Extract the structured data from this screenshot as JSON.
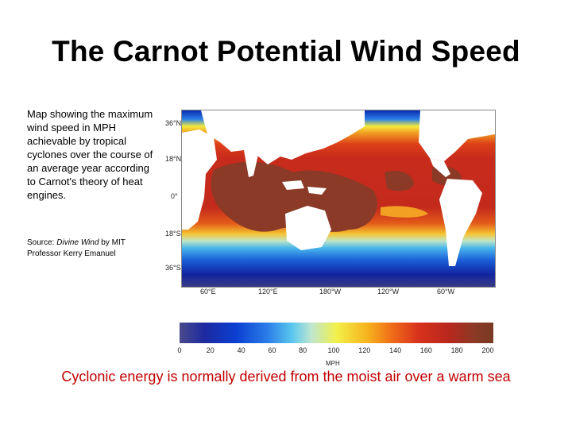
{
  "slide": {
    "title": "The Carnot Potential Wind Speed",
    "description": "Map showing the maximum wind speed in MPH achievable by tropical cyclones over the course of an average year according to Carnot's theory of heat engines.",
    "source_prefix": "Source: ",
    "source_work": "Divine Wind",
    "source_suffix": " by MIT Professor Kerry Emanuel",
    "caption": "Cyclonic energy is normally derived from the moist air over a warm sea"
  },
  "map": {
    "lat_labels": [
      "36°N",
      "18°N",
      "0°",
      "18°S",
      "36°S"
    ],
    "lon_labels": [
      "60°E",
      "120°E",
      "180°W",
      "120°W",
      "60°W"
    ]
  },
  "colorbar": {
    "ticks": [
      "0",
      "20",
      "40",
      "60",
      "80",
      "100",
      "120",
      "140",
      "160",
      "180",
      "200"
    ],
    "unit": "MPH"
  },
  "colors": {
    "caption": "#c00000",
    "land": "#ffffff",
    "deep_max": "#8a3a26"
  }
}
